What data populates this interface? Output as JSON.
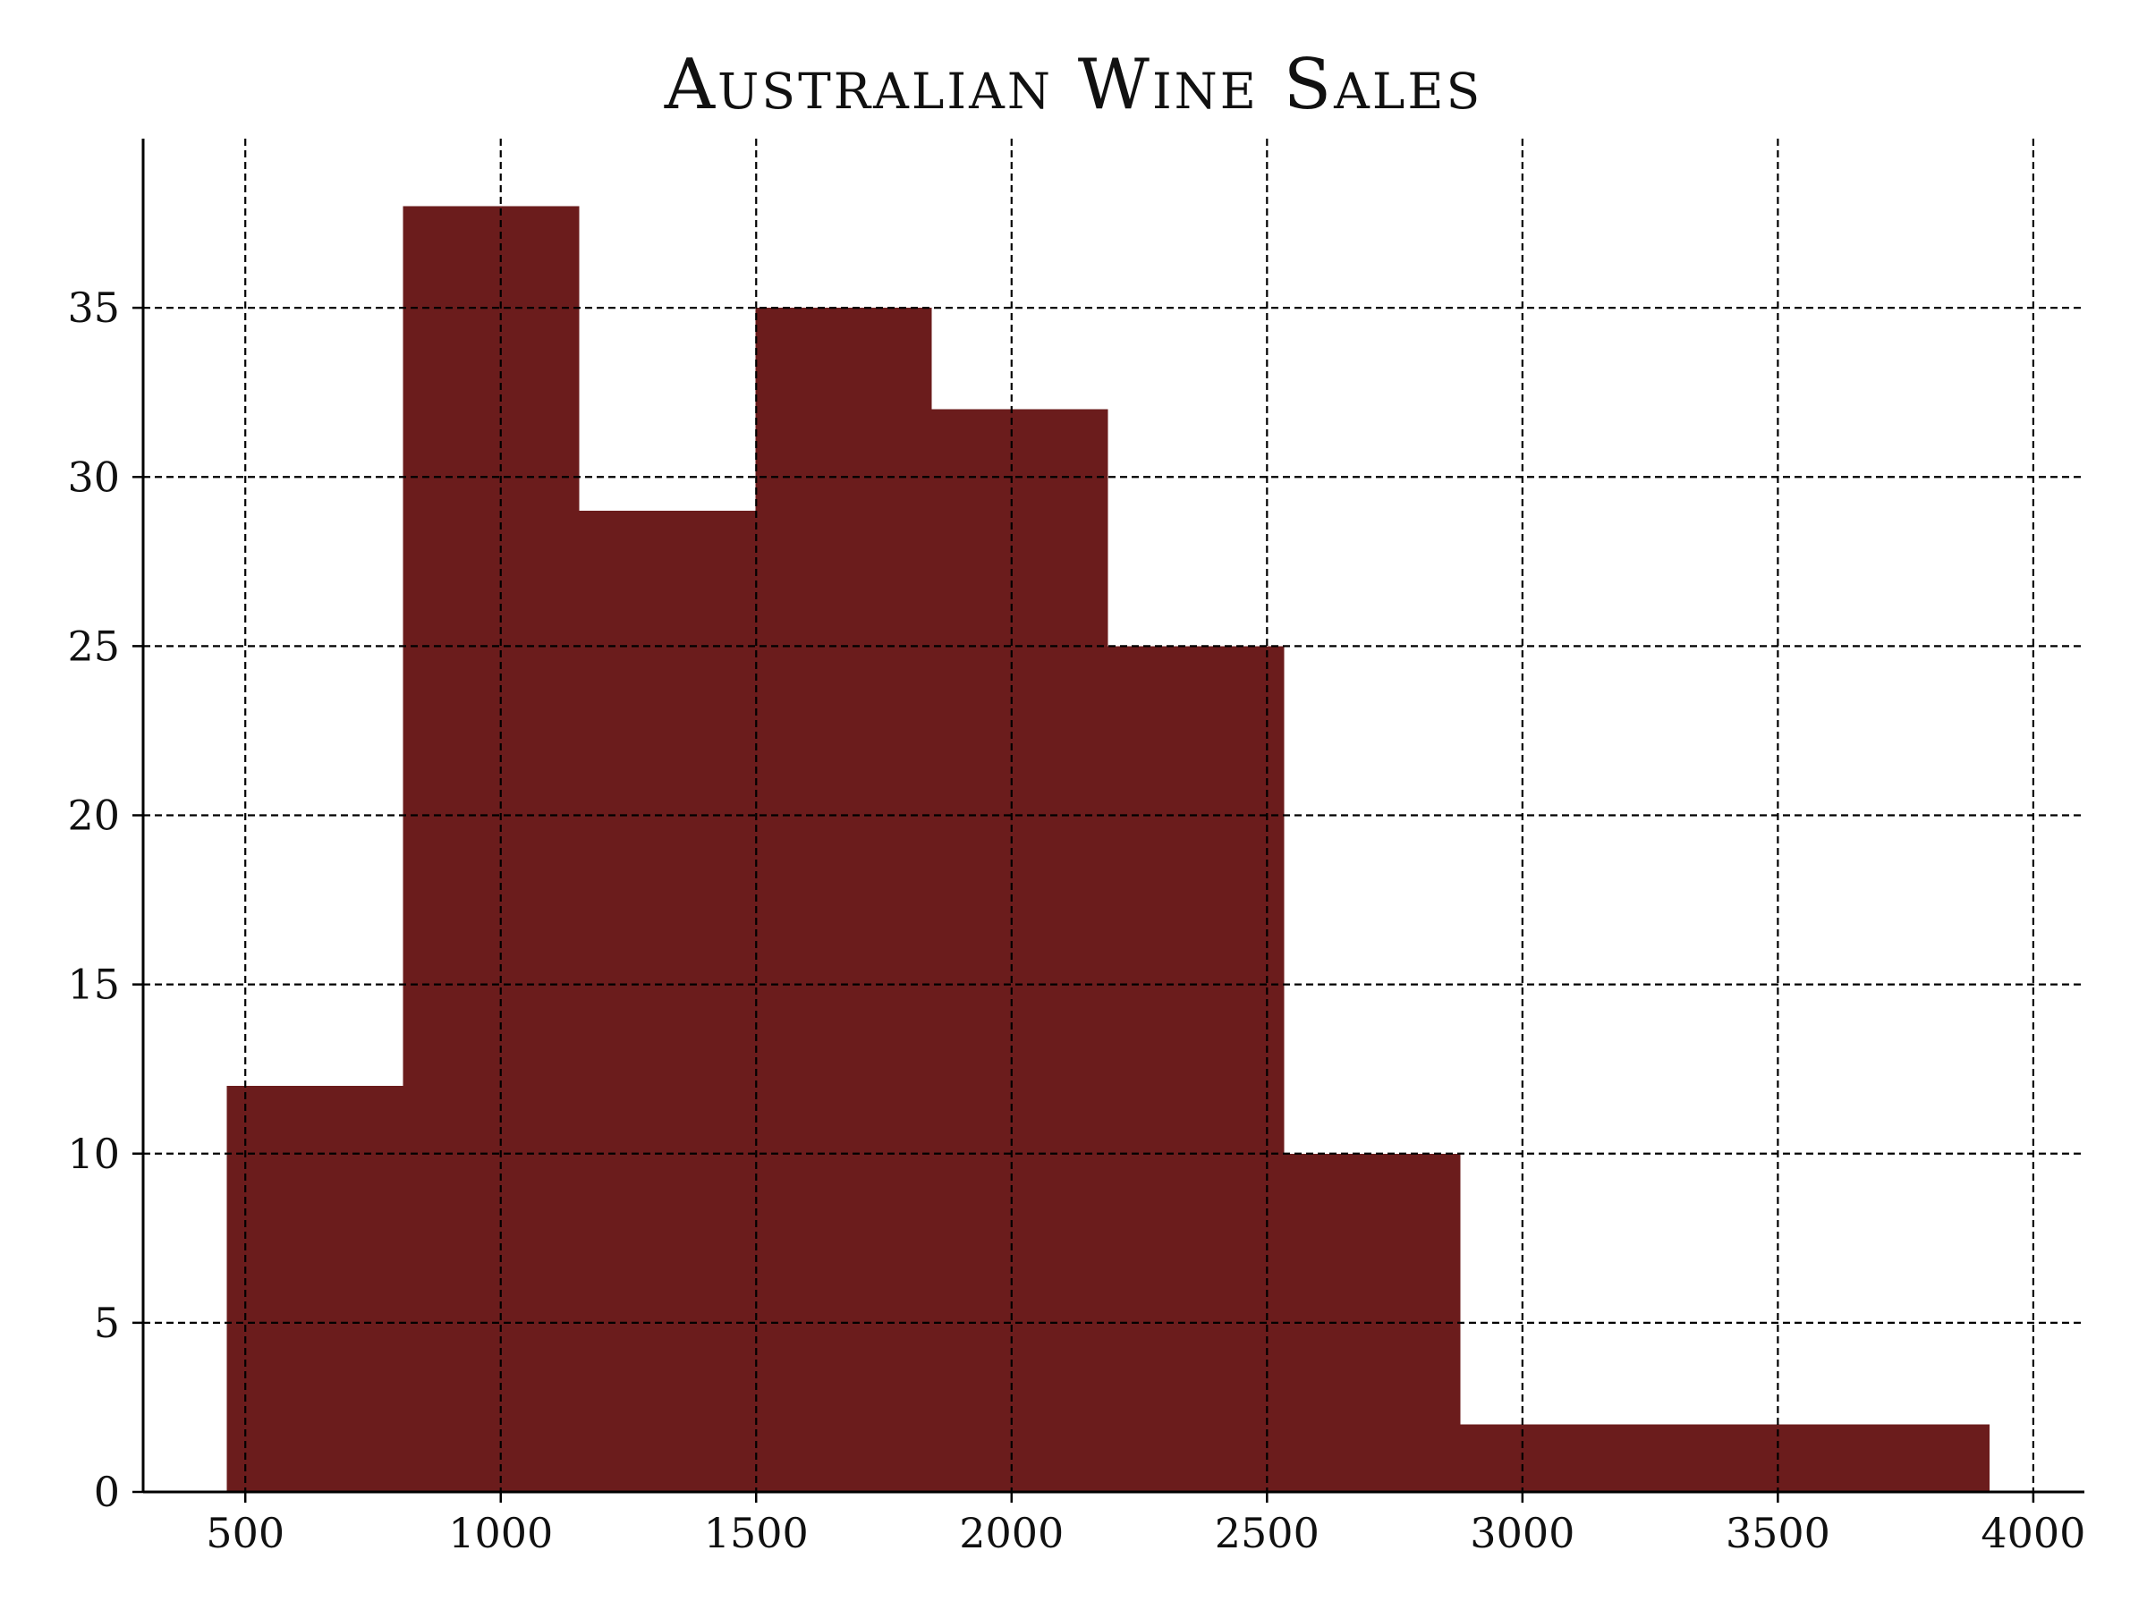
{
  "chart_data": {
    "type": "histogram",
    "title": "Australian Wine Sales",
    "xlabel": "",
    "ylabel": "",
    "bins": [
      {
        "start": 464,
        "end": 809,
        "count": 12
      },
      {
        "start": 809,
        "end": 1154,
        "count": 38
      },
      {
        "start": 1154,
        "end": 1499,
        "count": 29
      },
      {
        "start": 1499,
        "end": 1844,
        "count": 35
      },
      {
        "start": 1844,
        "end": 2189,
        "count": 32
      },
      {
        "start": 2189,
        "end": 2534,
        "count": 25
      },
      {
        "start": 2534,
        "end": 2879,
        "count": 10
      },
      {
        "start": 2879,
        "end": 3224,
        "count": 2
      },
      {
        "start": 3224,
        "end": 3569,
        "count": 2
      },
      {
        "start": 3569,
        "end": 3914,
        "count": 2
      }
    ],
    "xlim": [
      300,
      4100
    ],
    "ylim": [
      0,
      40
    ],
    "x_ticks": [
      500,
      1000,
      1500,
      2000,
      2500,
      3000,
      3500,
      4000
    ],
    "y_ticks": [
      0,
      5,
      10,
      15,
      20,
      25,
      30,
      35
    ],
    "grid": true,
    "grid_style": "dashed",
    "bar_color": "#6b1c1c",
    "axis_color": "#000000"
  }
}
